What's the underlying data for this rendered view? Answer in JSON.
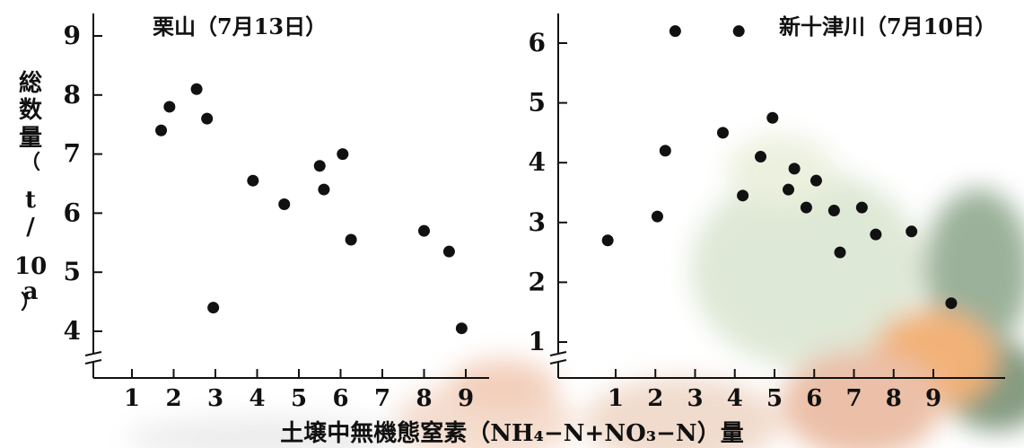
{
  "y_axis_label_chars": [
    "総",
    "数",
    "量",
    "（",
    "t",
    "/",
    "10",
    "a",
    "）"
  ],
  "x_axis_label": "土壌中無機態窒素（NH₄−N+NO₃−N）量",
  "chart_data": [
    {
      "type": "scatter",
      "title": "栗山（7月13日）",
      "xlabel": "土壌中無機態窒素（NH₄−N+NO₃−N）量",
      "ylabel": "総数量（t/10a）",
      "xlim": [
        0,
        10
      ],
      "ylim": [
        3.4,
        9.2
      ],
      "x_ticks": [
        1,
        2,
        3,
        4,
        5,
        6,
        7,
        8,
        9
      ],
      "y_ticks": [
        4,
        5,
        6,
        7,
        8,
        9
      ],
      "y_axis_break": true,
      "points": [
        {
          "x": 1.7,
          "y": 7.4
        },
        {
          "x": 1.9,
          "y": 7.8
        },
        {
          "x": 2.55,
          "y": 8.1
        },
        {
          "x": 2.8,
          "y": 7.6
        },
        {
          "x": 2.95,
          "y": 4.4
        },
        {
          "x": 3.9,
          "y": 6.55
        },
        {
          "x": 4.65,
          "y": 6.15
        },
        {
          "x": 5.5,
          "y": 6.8
        },
        {
          "x": 5.6,
          "y": 6.4
        },
        {
          "x": 6.05,
          "y": 7.0
        },
        {
          "x": 6.25,
          "y": 5.55
        },
        {
          "x": 8.0,
          "y": 5.7
        },
        {
          "x": 8.6,
          "y": 5.35
        },
        {
          "x": 8.9,
          "y": 4.05
        }
      ]
    },
    {
      "type": "scatter",
      "title": "新十津川（7月10日）",
      "xlabel": "土壌中無機態窒素（NH₄−N+NO₃−N）量",
      "ylabel": "総数量（t/10a）",
      "xlim": [
        0,
        10
      ],
      "ylim": [
        0.8,
        6.5
      ],
      "x_ticks": [
        1,
        2,
        3,
        4,
        5,
        6,
        7,
        8,
        9
      ],
      "y_ticks": [
        1,
        2,
        3,
        4,
        5,
        6
      ],
      "y_axis_break": true,
      "points": [
        {
          "x": 2.5,
          "y": 6.2
        },
        {
          "x": 4.1,
          "y": 6.2
        },
        {
          "x": 0.8,
          "y": 2.7
        },
        {
          "x": 2.05,
          "y": 3.1
        },
        {
          "x": 2.25,
          "y": 4.2
        },
        {
          "x": 3.7,
          "y": 4.5
        },
        {
          "x": 4.2,
          "y": 3.45
        },
        {
          "x": 4.65,
          "y": 4.1
        },
        {
          "x": 4.95,
          "y": 4.75
        },
        {
          "x": 5.35,
          "y": 3.55
        },
        {
          "x": 5.5,
          "y": 3.9
        },
        {
          "x": 5.8,
          "y": 3.25
        },
        {
          "x": 6.05,
          "y": 3.7
        },
        {
          "x": 6.5,
          "y": 3.2
        },
        {
          "x": 6.65,
          "y": 2.5
        },
        {
          "x": 7.2,
          "y": 3.25
        },
        {
          "x": 7.55,
          "y": 2.8
        },
        {
          "x": 8.45,
          "y": 2.85
        },
        {
          "x": 9.45,
          "y": 1.65
        }
      ]
    }
  ]
}
